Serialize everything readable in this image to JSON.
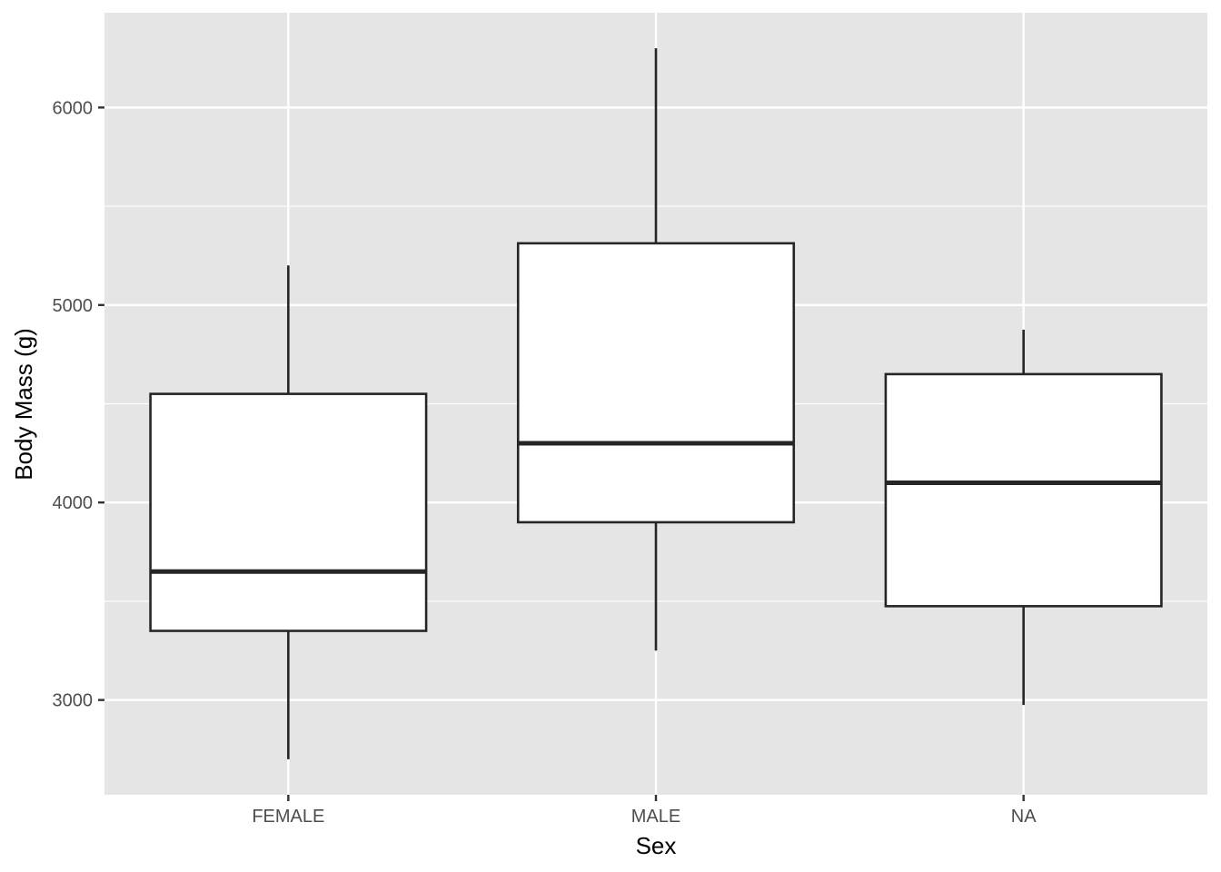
{
  "chart_data": {
    "type": "boxplot",
    "title": "",
    "xlabel": "Sex",
    "ylabel": "Body Mass (g)",
    "categories": [
      "FEMALE",
      "MALE",
      "NA"
    ],
    "boxes": [
      {
        "category": "FEMALE",
        "whisker_low": 2700,
        "q1": 3350,
        "median": 3650,
        "q3": 4550,
        "whisker_high": 5200
      },
      {
        "category": "MALE",
        "whisker_low": 3250,
        "q1": 3900,
        "median": 4300,
        "q3": 5312.5,
        "whisker_high": 6300
      },
      {
        "category": "NA",
        "whisker_low": 2975,
        "q1": 3475,
        "median": 4100,
        "q3": 4650,
        "whisker_high": 4875
      }
    ],
    "ylim": [
      2520,
      6480
    ],
    "y_major_ticks": [
      3000,
      4000,
      5000,
      6000
    ],
    "y_minor_ticks": [
      3500,
      4500,
      5500
    ],
    "grid": true,
    "colors": {
      "panel_background": "#e5e5e5",
      "grid_line": "#ffffff",
      "box_fill": "#ffffff",
      "box_stroke": "#262626",
      "tick_mark": "#333333",
      "tick_label": "#4d4d4d"
    }
  }
}
